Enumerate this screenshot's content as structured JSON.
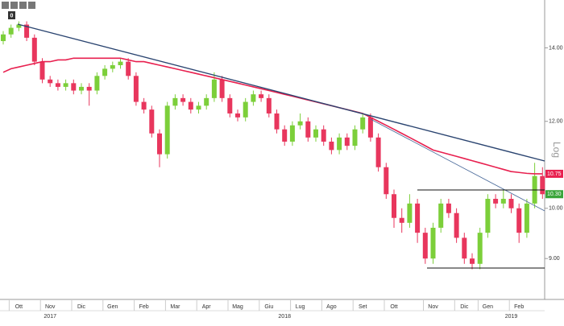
{
  "chart_data": {
    "type": "candlestick",
    "toolbar_badge": "0",
    "scale_label": "Log",
    "log_scale": true,
    "up_color": "#7ccf3a",
    "down_color": "#e8365d",
    "ylim": [
      8.26,
      15.27
    ],
    "yticks": [
      {
        "value": 9,
        "label": "9.00"
      },
      {
        "value": 10,
        "label": "10.00"
      },
      {
        "value": 12,
        "label": "12.00"
      },
      {
        "value": 14,
        "label": "14.00"
      }
    ],
    "categories": [
      null,
      null,
      "Ott",
      null,
      null,
      null,
      "Nov",
      null,
      null,
      null,
      "Dic",
      null,
      null,
      null,
      "Gen",
      null,
      null,
      null,
      "Feb",
      null,
      null,
      null,
      "Mar",
      null,
      null,
      null,
      "Apr",
      null,
      null,
      null,
      "Mag",
      null,
      null,
      null,
      "Giu",
      null,
      null,
      null,
      "Lug",
      null,
      null,
      null,
      "Ago",
      null,
      null,
      null,
      "Set",
      null,
      null,
      null,
      "Ott",
      null,
      null,
      null,
      null,
      "Nov",
      null,
      null,
      null,
      "Dic",
      null,
      null,
      "Gen",
      null,
      null,
      null,
      "Feb",
      null,
      null,
      null
    ],
    "categories2": [
      null,
      null,
      null,
      null,
      null,
      null,
      "2017",
      null,
      null,
      null,
      null,
      null,
      null,
      null,
      null,
      null,
      null,
      null,
      null,
      null,
      null,
      null,
      null,
      null,
      null,
      null,
      null,
      null,
      null,
      null,
      null,
      null,
      null,
      null,
      null,
      null,
      "2018",
      null,
      null,
      null,
      null,
      null,
      null,
      null,
      null,
      null,
      null,
      null,
      null,
      null,
      null,
      null,
      null,
      null,
      null,
      null,
      null,
      null,
      null,
      null,
      null,
      null,
      null,
      null,
      null,
      "2019",
      null,
      null,
      null,
      null
    ],
    "open": [
      14.2,
      14.4,
      14.6,
      14.7,
      14.3,
      13.6,
      13.1,
      13.0,
      12.9,
      13.0,
      12.8,
      12.9,
      12.8,
      13.2,
      13.4,
      13.5,
      13.6,
      13.2,
      12.5,
      12.3,
      11.7,
      11.2,
      12.4,
      12.6,
      12.5,
      12.3,
      12.4,
      12.6,
      13.1,
      12.6,
      12.2,
      12.1,
      12.5,
      12.7,
      12.6,
      12.2,
      11.8,
      11.5,
      11.9,
      12.0,
      11.6,
      11.8,
      11.5,
      11.3,
      11.6,
      11.4,
      11.8,
      12.1,
      11.6,
      10.9,
      10.3,
      9.8,
      9.7,
      10.1,
      9.5,
      9.0,
      9.6,
      10.1,
      9.9,
      9.4,
      9.0,
      8.9,
      9.5,
      10.2,
      10.1,
      10.2,
      10.0,
      9.5,
      10.1,
      10.7
    ],
    "high": [
      14.5,
      14.7,
      14.8,
      14.8,
      14.4,
      13.7,
      13.2,
      13.1,
      13.1,
      13.1,
      13.0,
      13.0,
      13.3,
      13.5,
      13.6,
      13.7,
      13.7,
      13.3,
      12.6,
      12.4,
      11.8,
      12.5,
      12.7,
      12.7,
      12.6,
      12.5,
      12.7,
      13.3,
      13.2,
      12.7,
      12.3,
      12.6,
      12.8,
      12.8,
      12.7,
      12.3,
      11.9,
      12.0,
      12.2,
      12.1,
      11.9,
      11.9,
      11.6,
      11.7,
      11.7,
      11.9,
      12.2,
      12.2,
      11.7,
      11.0,
      10.4,
      10.0,
      10.3,
      10.2,
      9.6,
      9.7,
      10.2,
      10.2,
      10.0,
      9.5,
      9.1,
      9.6,
      10.3,
      10.3,
      10.4,
      10.3,
      10.1,
      10.2,
      11.0,
      10.9
    ],
    "low": [
      14.1,
      14.3,
      14.5,
      14.2,
      13.5,
      13.0,
      12.9,
      12.8,
      12.8,
      12.7,
      12.7,
      12.4,
      12.7,
      13.1,
      13.3,
      13.4,
      13.1,
      12.4,
      12.2,
      11.6,
      10.9,
      11.1,
      12.3,
      12.4,
      12.2,
      12.2,
      12.3,
      12.5,
      12.5,
      12.1,
      12.0,
      12.0,
      12.4,
      12.5,
      12.1,
      11.7,
      11.4,
      11.4,
      11.8,
      11.5,
      11.5,
      11.4,
      11.2,
      11.2,
      11.3,
      11.3,
      11.7,
      11.5,
      10.8,
      10.2,
      9.6,
      9.5,
      9.6,
      9.3,
      8.9,
      8.9,
      9.5,
      9.8,
      9.3,
      8.9,
      8.8,
      8.8,
      9.4,
      10.0,
      10.0,
      9.9,
      9.3,
      9.4,
      10.0,
      10.2
    ],
    "close": [
      14.4,
      14.6,
      14.7,
      14.3,
      13.6,
      13.1,
      13.0,
      12.9,
      13.0,
      12.8,
      12.9,
      12.8,
      13.2,
      13.4,
      13.5,
      13.6,
      13.2,
      12.5,
      12.3,
      11.7,
      11.2,
      12.4,
      12.6,
      12.5,
      12.3,
      12.4,
      12.6,
      13.1,
      12.6,
      12.2,
      12.1,
      12.5,
      12.7,
      12.6,
      12.2,
      11.8,
      11.5,
      11.9,
      12.0,
      11.6,
      11.8,
      11.5,
      11.3,
      11.6,
      11.4,
      11.8,
      12.1,
      11.6,
      10.9,
      10.3,
      9.8,
      9.7,
      10.1,
      9.5,
      9.0,
      9.6,
      10.1,
      9.9,
      9.4,
      9.0,
      8.9,
      9.5,
      10.2,
      10.1,
      10.2,
      10.0,
      9.5,
      10.1,
      10.7,
      10.3
    ],
    "overlays": [
      {
        "color": "#e8204f",
        "values": [
          13.3,
          13.4,
          13.45,
          13.5,
          13.55,
          13.6,
          13.6,
          13.65,
          13.65,
          13.7,
          13.7,
          13.7,
          13.7,
          13.7,
          13.7,
          13.7,
          13.65,
          13.6,
          13.6,
          13.55,
          13.5,
          13.45,
          13.4,
          13.35,
          13.3,
          13.25,
          13.2,
          13.15,
          13.1,
          13.05,
          13.0,
          12.95,
          12.9,
          12.85,
          12.8,
          12.75,
          12.7,
          12.65,
          12.6,
          12.55,
          12.5,
          12.45,
          12.4,
          12.35,
          12.3,
          12.25,
          12.2,
          12.1,
          12.0,
          11.9,
          11.8,
          11.7,
          11.6,
          11.5,
          11.4,
          11.3,
          11.25,
          11.2,
          11.15,
          11.1,
          11.05,
          11.0,
          10.95,
          10.9,
          10.85,
          10.8,
          10.78,
          10.76,
          10.75,
          10.75
        ]
      }
    ],
    "price_tags": [
      {
        "value": 10.75,
        "label": "10.75",
        "color": "#e8204f"
      },
      {
        "value": 10.3,
        "label": "10.30",
        "color": "#3aa53a"
      }
    ]
  }
}
